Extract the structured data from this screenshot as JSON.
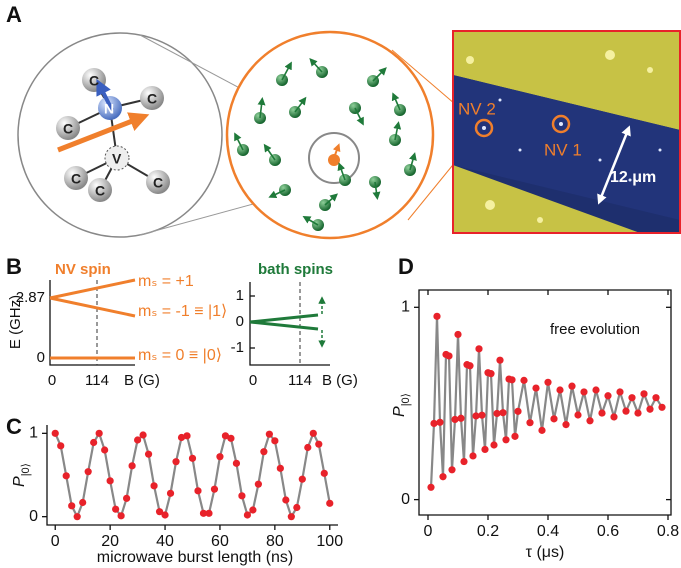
{
  "panel_a": {
    "label": "A",
    "atoms": [
      "C",
      "C",
      "C",
      "C",
      "C",
      "C",
      "N",
      "V"
    ],
    "nv2": "NV 2",
    "nv1": "NV 1",
    "scale": "12 μm"
  },
  "panel_b": {
    "label": "B",
    "nv": {
      "title": "NV spin",
      "yticks": [
        "2.87",
        "0"
      ],
      "xticks": [
        "0",
        "114"
      ],
      "y_label": "E (GHz)",
      "x_label": "B (G)",
      "levels": [
        "mₛ = +1",
        "mₛ = -1 ≡ |1⟩",
        "mₛ = 0 ≡ |0⟩"
      ]
    },
    "bath": {
      "title": "bath spins",
      "yticks": [
        "1",
        "0",
        "-1"
      ],
      "xticks": [
        "0",
        "114"
      ],
      "x_label": "B (G)"
    }
  },
  "chart_data": [
    {
      "type": "line",
      "label": "C",
      "x_label": "microwave burst length (ns)",
      "y_label": "P",
      "y_label_sub": "|0⟩",
      "color": "#e8222a",
      "line_color": "#888888",
      "box": false,
      "xlim": [
        -3,
        103
      ],
      "ylim": [
        -0.1,
        1.1
      ],
      "xticks": [
        0,
        20,
        40,
        60,
        80,
        100
      ],
      "yticks": [
        0,
        1
      ],
      "x": [
        0,
        2,
        4,
        6,
        8,
        10,
        12,
        14,
        16,
        18,
        20,
        22,
        24,
        26,
        28,
        30,
        32,
        34,
        36,
        38,
        40,
        42,
        44,
        46,
        48,
        50,
        52,
        54,
        56,
        58,
        60,
        62,
        64,
        66,
        68,
        70,
        72,
        74,
        76,
        78,
        80,
        82,
        84,
        86,
        88,
        90,
        92,
        94,
        96,
        98,
        100
      ],
      "values": [
        1.0,
        0.85,
        0.49,
        0.13,
        0.0,
        0.17,
        0.54,
        0.89,
        1.0,
        0.8,
        0.43,
        0.09,
        0.01,
        0.22,
        0.61,
        0.92,
        0.98,
        0.75,
        0.37,
        0.06,
        0.02,
        0.28,
        0.66,
        0.95,
        0.97,
        0.7,
        0.31,
        0.04,
        0.04,
        0.33,
        0.72,
        0.97,
        0.94,
        0.64,
        0.25,
        0.02,
        0.08,
        0.39,
        0.78,
        0.99,
        0.91,
        0.58,
        0.2,
        0.0,
        0.11,
        0.45,
        0.83,
        1.0,
        0.87,
        0.52,
        0.16
      ]
    },
    {
      "type": "line",
      "label": "D",
      "x_label": "τ (μs)",
      "y_label": "P",
      "y_label_sub": "|0⟩",
      "annotation": "free evolution",
      "color": "#e8222a",
      "line_color": "#888888",
      "box": true,
      "xlim": [
        -0.03,
        0.81
      ],
      "ylim": [
        -0.08,
        1.09
      ],
      "xticks": [
        0,
        0.2,
        0.4,
        0.6,
        0.8
      ],
      "yticks": [
        0,
        1
      ],
      "x": [
        0.01,
        0.02,
        0.03,
        0.04,
        0.05,
        0.06,
        0.07,
        0.08,
        0.09,
        0.1,
        0.11,
        0.12,
        0.13,
        0.14,
        0.15,
        0.16,
        0.17,
        0.18,
        0.19,
        0.2,
        0.21,
        0.22,
        0.23,
        0.24,
        0.25,
        0.26,
        0.27,
        0.28,
        0.29,
        0.3,
        0.32,
        0.34,
        0.36,
        0.38,
        0.4,
        0.42,
        0.44,
        0.46,
        0.48,
        0.5,
        0.52,
        0.54,
        0.56,
        0.58,
        0.6,
        0.62,
        0.64,
        0.66,
        0.68,
        0.7,
        0.72,
        0.74,
        0.76,
        0.78
      ],
      "values": [
        0.064,
        0.396,
        0.953,
        0.402,
        0.119,
        0.755,
        0.747,
        0.155,
        0.417,
        0.859,
        0.423,
        0.198,
        0.702,
        0.696,
        0.227,
        0.435,
        0.784,
        0.439,
        0.261,
        0.66,
        0.655,
        0.284,
        0.448,
        0.725,
        0.452,
        0.311,
        0.627,
        0.623,
        0.329,
        0.459,
        0.62,
        0.4,
        0.58,
        0.36,
        0.61,
        0.42,
        0.57,
        0.39,
        0.59,
        0.44,
        0.56,
        0.41,
        0.57,
        0.45,
        0.54,
        0.43,
        0.56,
        0.46,
        0.53,
        0.45,
        0.55,
        0.47,
        0.53,
        0.48
      ]
    }
  ]
}
